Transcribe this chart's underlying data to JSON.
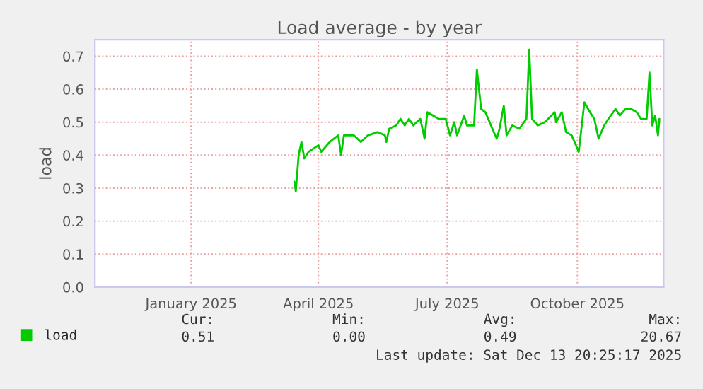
{
  "chart_data": {
    "type": "line",
    "title": "Load average - by year",
    "ylabel": "load",
    "xlim": [
      "2024-10-25",
      "2025-12-01"
    ],
    "xticks": [
      {
        "value": "2025-01-01",
        "label": "January 2025"
      },
      {
        "value": "2025-04-01",
        "label": "April 2025"
      },
      {
        "value": "2025-07-01",
        "label": "July 2025"
      },
      {
        "value": "2025-10-01",
        "label": "October 2025"
      }
    ],
    "ylim": [
      0,
      0.75
    ],
    "yticks": [
      {
        "value": 0,
        "label": "0.0"
      },
      {
        "value": 0.1,
        "label": "0.1"
      },
      {
        "value": 0.2,
        "label": "0.2"
      },
      {
        "value": 0.3,
        "label": "0.3"
      },
      {
        "value": 0.4,
        "label": "0.4"
      },
      {
        "value": 0.5,
        "label": "0.5"
      },
      {
        "value": 0.6,
        "label": "0.6"
      },
      {
        "value": 0.7,
        "label": "0.7"
      }
    ],
    "grid": true,
    "legend": "bottom left",
    "marker": "none",
    "line_style": "solid",
    "x": [
      "2025-03-15",
      "2025-03-16",
      "2025-03-18",
      "2025-03-20",
      "2025-03-22",
      "2025-03-25",
      "2025-04-01",
      "2025-04-03",
      "2025-04-09",
      "2025-04-15",
      "2025-04-17",
      "2025-04-19",
      "2025-04-26",
      "2025-05-01",
      "2025-05-06",
      "2025-05-13",
      "2025-05-18",
      "2025-05-19",
      "2025-05-21",
      "2025-05-26",
      "2025-05-29",
      "2025-06-01",
      "2025-06-04",
      "2025-06-07",
      "2025-06-12",
      "2025-06-15",
      "2025-06-17",
      "2025-06-25",
      "2025-06-30",
      "2025-07-03",
      "2025-07-06",
      "2025-07-08",
      "2025-07-13",
      "2025-07-15",
      "2025-07-18",
      "2025-07-20",
      "2025-07-22",
      "2025-07-25",
      "2025-07-28",
      "2025-08-01",
      "2025-08-05",
      "2025-08-07",
      "2025-08-10",
      "2025-08-12",
      "2025-08-16",
      "2025-08-21",
      "2025-08-26",
      "2025-08-28",
      "2025-08-30",
      "2025-09-03",
      "2025-09-08",
      "2025-09-15",
      "2025-09-16",
      "2025-09-20",
      "2025-09-23",
      "2025-09-27",
      "2025-09-29",
      "2025-10-02",
      "2025-10-06",
      "2025-10-10",
      "2025-10-13",
      "2025-10-16",
      "2025-10-20",
      "2025-10-23",
      "2025-10-28",
      "2025-10-31",
      "2025-11-04",
      "2025-11-08",
      "2025-11-12",
      "2025-11-15",
      "2025-11-19",
      "2025-11-21",
      "2025-11-23",
      "2025-11-25",
      "2025-11-27",
      "2025-11-28"
    ],
    "series": [
      {
        "name": "load",
        "color": "#00cc00",
        "values": [
          0.32,
          0.29,
          0.4,
          0.44,
          0.39,
          0.41,
          0.43,
          0.41,
          0.44,
          0.46,
          0.4,
          0.46,
          0.46,
          0.44,
          0.46,
          0.47,
          0.46,
          0.44,
          0.48,
          0.49,
          0.51,
          0.49,
          0.51,
          0.49,
          0.51,
          0.45,
          0.53,
          0.51,
          0.51,
          0.46,
          0.5,
          0.46,
          0.52,
          0.49,
          0.49,
          0.49,
          0.66,
          0.54,
          0.53,
          0.49,
          0.45,
          0.48,
          0.55,
          0.46,
          0.49,
          0.48,
          0.51,
          0.72,
          0.51,
          0.49,
          0.5,
          0.53,
          0.5,
          0.53,
          0.47,
          0.46,
          0.44,
          0.41,
          0.56,
          0.53,
          0.51,
          0.45,
          0.49,
          0.51,
          0.54,
          0.52,
          0.54,
          0.54,
          0.53,
          0.51,
          0.51,
          0.65,
          0.49,
          0.52,
          0.46,
          0.51
        ]
      }
    ],
    "annotations": [
      "Cur:",
      "Min:",
      "Avg:",
      "Max:",
      "0.51",
      "0.00",
      "0.49",
      "20.67",
      "Last update: Sat Dec 13 20:25:17 2025"
    ]
  }
}
